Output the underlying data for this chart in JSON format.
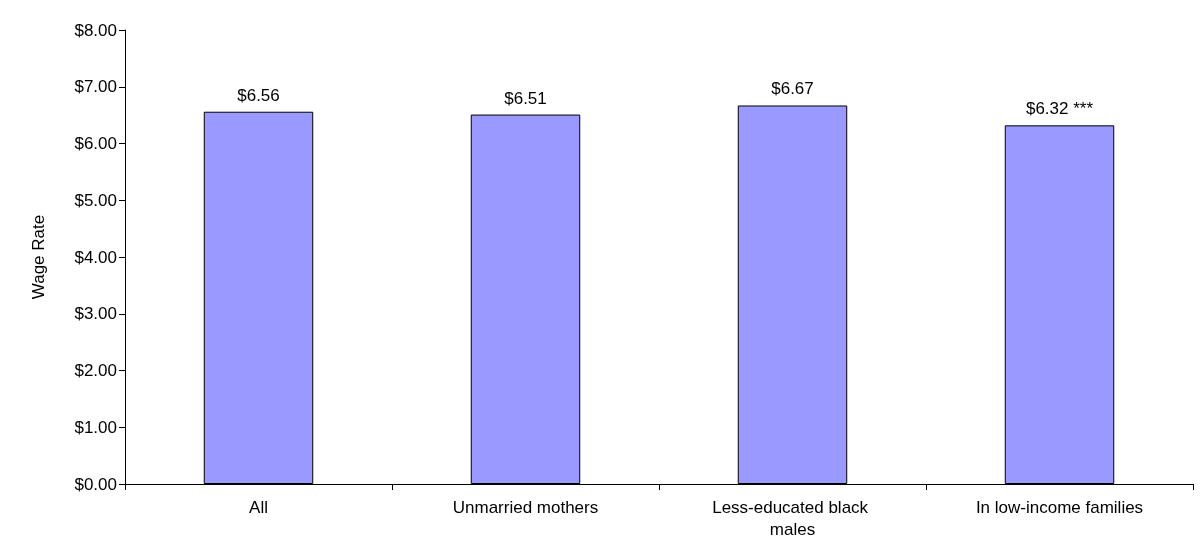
{
  "chart_data": {
    "type": "bar",
    "ylabel": "Wage Rate",
    "categories": [
      "All",
      "Unmarried mothers",
      "Less-educated black males",
      "In low-income families"
    ],
    "values": [
      6.56,
      6.51,
      6.67,
      6.32
    ],
    "value_labels": [
      "$6.56",
      "$6.51",
      "$6.67",
      "$6.32 ***"
    ],
    "color": "#9999ff",
    "ylim": [
      0,
      8
    ],
    "yticks": [
      {
        "value": 0,
        "label": "$0.00"
      },
      {
        "value": 1,
        "label": "$1.00"
      },
      {
        "value": 2,
        "label": "$2.00"
      },
      {
        "value": 3,
        "label": "$3.00"
      },
      {
        "value": 4,
        "label": "$4.00"
      },
      {
        "value": 5,
        "label": "$5.00"
      },
      {
        "value": 6,
        "label": "$6.00"
      },
      {
        "value": 7,
        "label": "$7.00"
      },
      {
        "value": 8,
        "label": "$8.00"
      }
    ],
    "grid": false
  }
}
